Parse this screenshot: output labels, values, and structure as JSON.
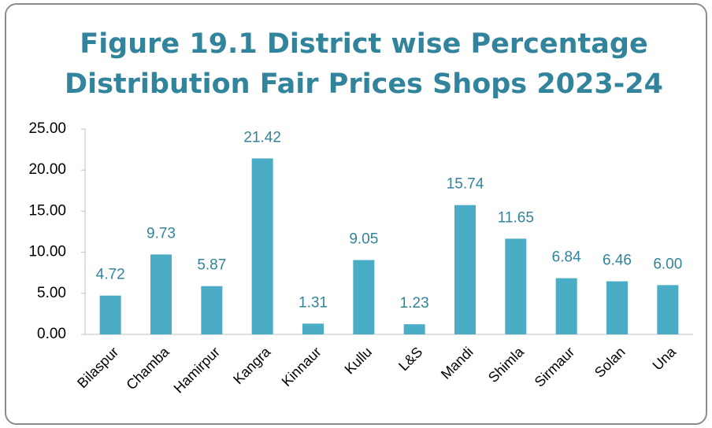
{
  "chart_data": {
    "type": "bar",
    "title": [
      "Figure 19.1 District wise  Percentage",
      "Distribution Fair Prices Shops 2023-24"
    ],
    "categories": [
      "Bilaspur",
      "Chamba",
      "Hamirpur",
      "Kangra",
      "Kinnaur",
      "Kullu",
      "L&S",
      "Mandi",
      "Shimla",
      "Sirmaur",
      "Solan",
      "Una"
    ],
    "values": [
      4.72,
      9.73,
      5.87,
      21.42,
      1.31,
      9.05,
      1.23,
      15.74,
      11.65,
      6.84,
      6.46,
      6.0
    ],
    "value_labels": [
      "4.72",
      "9.73",
      "5.87",
      "21.42",
      "1.31",
      "9.05",
      "1.23",
      "15.74",
      "11.65",
      "6.84",
      "6.46",
      "6.00"
    ],
    "color": "#4bacc6",
    "ylim": [
      0,
      25
    ],
    "yticks": [
      {
        "value": 0,
        "label": "0.00"
      },
      {
        "value": 5,
        "label": "5.00"
      },
      {
        "value": 10,
        "label": "10.00"
      },
      {
        "value": 15,
        "label": "15.00"
      },
      {
        "value": 20,
        "label": "20.00"
      },
      {
        "value": 25,
        "label": "25.00"
      }
    ],
    "grid": false
  }
}
